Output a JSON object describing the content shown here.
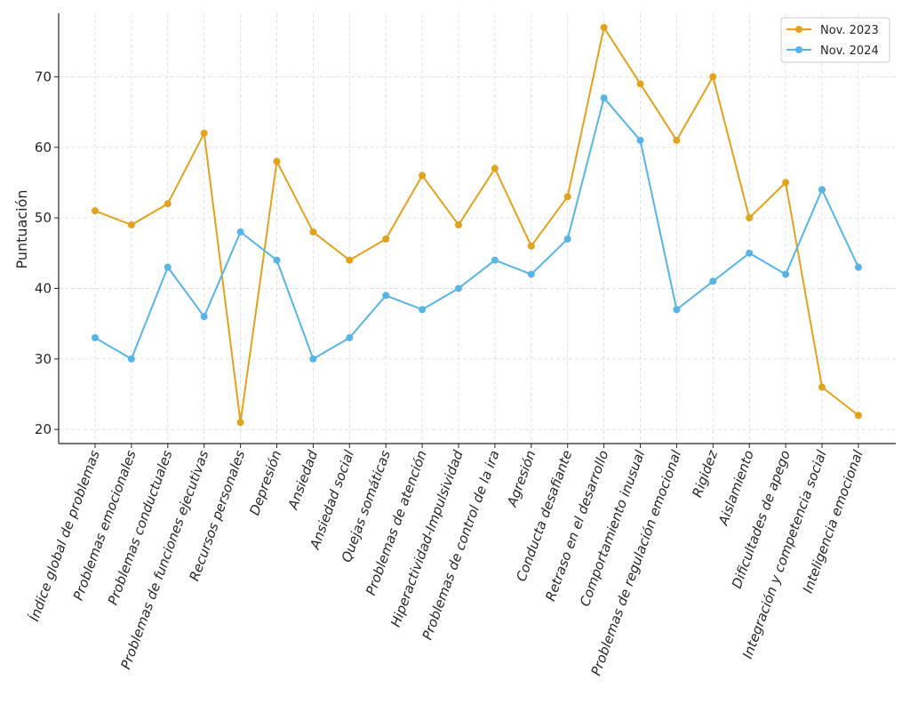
{
  "chart_data": {
    "type": "line",
    "title": "",
    "xlabel": "",
    "ylabel": "Puntuación",
    "ylim": [
      18,
      79
    ],
    "yticks": [
      20,
      30,
      40,
      50,
      60,
      70
    ],
    "grid": true,
    "legend_position": "top-right",
    "categories": [
      "Índice global de problemas",
      "Problemas emocionales",
      "Problemas conductuales",
      "Problemas de funciones ejecutivas",
      "Recursos personales",
      "Depresión",
      "Ansiedad",
      "Ansiedad social",
      "Quejas somáticas",
      "Problemas de atención",
      "Hiperactividad-Impulsividad",
      "Problemas de control de la ira",
      "Agresión",
      "Conducta desafiante",
      "Retraso en el desarrollo",
      "Comportamiento inusual",
      "Problemas de regulación emocional",
      "Rigidez",
      "Aislamiento",
      "Dificultades de apego",
      "Integración y competencia social",
      "Inteligencia emocional"
    ],
    "series": [
      {
        "name": "Nov. 2023",
        "color": "#E3A21A",
        "values": [
          51,
          49,
          52,
          62,
          21,
          58,
          48,
          44,
          47,
          56,
          49,
          57,
          46,
          53,
          77,
          69,
          61,
          70,
          50,
          55,
          26,
          22
        ]
      },
      {
        "name": "Nov. 2024",
        "color": "#56B4E9",
        "values": [
          33,
          30,
          43,
          36,
          48,
          44,
          30,
          33,
          39,
          37,
          40,
          44,
          42,
          47,
          67,
          61,
          37,
          41,
          45,
          42,
          54,
          43
        ]
      }
    ]
  }
}
